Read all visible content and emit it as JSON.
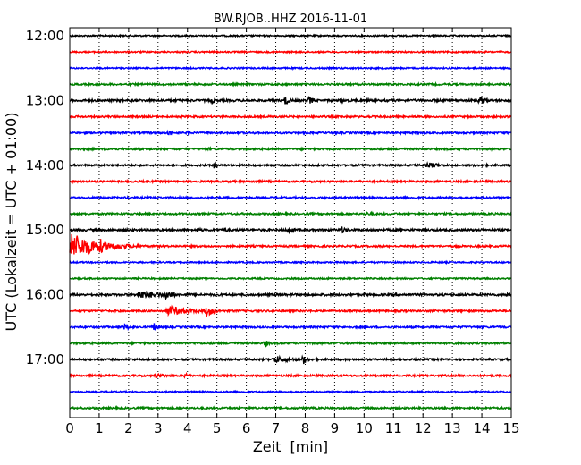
{
  "chart_data": {
    "type": "line",
    "title": "BW.RJOB..HHZ 2016-11-01",
    "xlabel": "Zeit  [min]",
    "ylabel": "UTC (Lokalzeit = UTC + 01:00)",
    "xlim": [
      0,
      15
    ],
    "x_ticks": [
      "0",
      "1",
      "2",
      "3",
      "4",
      "5",
      "6",
      "7",
      "8",
      "9",
      "10",
      "11",
      "12",
      "13",
      "14",
      "15"
    ],
    "y_ticks": [
      "12:00",
      "13:00",
      "14:00",
      "15:00",
      "16:00",
      "17:00"
    ],
    "grid": "vertical dotted",
    "colors": [
      "#000000",
      "#ff0000",
      "#0000ff",
      "#008000"
    ],
    "traces": [
      {
        "time": "12:00",
        "color": "#000000",
        "noise": 0.8,
        "events": []
      },
      {
        "time": "12:15",
        "color": "#ff0000",
        "noise": 0.8,
        "events": []
      },
      {
        "time": "12:30",
        "color": "#0000ff",
        "noise": 0.8,
        "events": []
      },
      {
        "time": "12:45",
        "color": "#008000",
        "noise": 1.0,
        "events": []
      },
      {
        "time": "13:00",
        "color": "#000000",
        "noise": 1.2,
        "events": [
          {
            "start": 4.8,
            "amp": 5,
            "dur": 0.3
          },
          {
            "start": 7.3,
            "amp": 7,
            "dur": 0.5
          },
          {
            "start": 8.1,
            "amp": 6,
            "dur": 0.6
          },
          {
            "start": 9.2,
            "amp": 5,
            "dur": 0.2
          },
          {
            "start": 13.9,
            "amp": 7,
            "dur": 0.6
          }
        ]
      },
      {
        "time": "13:15",
        "color": "#ff0000",
        "noise": 1.0,
        "events": []
      },
      {
        "time": "13:30",
        "color": "#0000ff",
        "noise": 1.0,
        "events": [
          {
            "start": 3.3,
            "amp": 4,
            "dur": 0.8
          },
          {
            "start": 4.0,
            "amp": 5,
            "dur": 0.3
          }
        ]
      },
      {
        "time": "13:45",
        "color": "#008000",
        "noise": 1.0,
        "events": [
          {
            "start": 4.7,
            "amp": 3,
            "dur": 0.3
          }
        ]
      },
      {
        "time": "14:00",
        "color": "#000000",
        "noise": 1.0,
        "events": [
          {
            "start": 4.9,
            "amp": 7,
            "dur": 0.3
          },
          {
            "start": 12.1,
            "amp": 4,
            "dur": 1.5
          }
        ]
      },
      {
        "time": "14:15",
        "color": "#ff0000",
        "noise": 1.0,
        "events": [
          {
            "start": 6.2,
            "amp": 3,
            "dur": 0.4
          }
        ]
      },
      {
        "time": "14:30",
        "color": "#0000ff",
        "noise": 1.0,
        "events": [
          {
            "start": 1.2,
            "amp": 2,
            "dur": 0.4
          }
        ]
      },
      {
        "time": "14:45",
        "color": "#008000",
        "noise": 1.0,
        "events": [
          {
            "start": 10.0,
            "amp": 2,
            "dur": 2.5
          }
        ]
      },
      {
        "time": "15:00",
        "color": "#000000",
        "noise": 1.2,
        "events": [
          {
            "start": 4.3,
            "amp": 3,
            "dur": 0.8
          },
          {
            "start": 5.2,
            "amp": 4,
            "dur": 0.6
          },
          {
            "start": 7.4,
            "amp": 5,
            "dur": 0.7
          },
          {
            "start": 8.3,
            "amp": 3,
            "dur": 0.4
          },
          {
            "start": 9.2,
            "amp": 5,
            "dur": 0.6
          }
        ]
      },
      {
        "time": "15:15",
        "color": "#ff0000",
        "noise": 1.0,
        "events": [
          {
            "start": 0.0,
            "amp": 16,
            "dur": 3.0
          },
          {
            "start": 1.0,
            "amp": 12,
            "dur": 0.5
          }
        ]
      },
      {
        "time": "15:30",
        "color": "#0000ff",
        "noise": 0.8,
        "events": []
      },
      {
        "time": "15:45",
        "color": "#008000",
        "noise": 0.8,
        "events": []
      },
      {
        "time": "16:00",
        "color": "#000000",
        "noise": 1.2,
        "events": [
          {
            "start": 2.3,
            "amp": 6,
            "dur": 2.5
          },
          {
            "start": 3.2,
            "amp": 8,
            "dur": 0.8
          },
          {
            "start": 10.0,
            "amp": 3,
            "dur": 0.3
          },
          {
            "start": 14.8,
            "amp": 4,
            "dur": 0.3
          }
        ]
      },
      {
        "time": "16:15",
        "color": "#ff0000",
        "noise": 1.0,
        "events": [
          {
            "start": 3.3,
            "amp": 6,
            "dur": 2.5
          },
          {
            "start": 4.6,
            "amp": 8,
            "dur": 0.8
          }
        ]
      },
      {
        "time": "16:30",
        "color": "#0000ff",
        "noise": 1.0,
        "events": [
          {
            "start": 1.8,
            "amp": 4,
            "dur": 1.0
          },
          {
            "start": 2.8,
            "amp": 7,
            "dur": 0.5
          },
          {
            "start": 6.1,
            "amp": 2,
            "dur": 0.3
          },
          {
            "start": 8.5,
            "amp": 2,
            "dur": 0.3
          }
        ]
      },
      {
        "time": "16:45",
        "color": "#008000",
        "noise": 1.0,
        "events": [
          {
            "start": 6.6,
            "amp": 6,
            "dur": 0.4
          }
        ]
      },
      {
        "time": "17:00",
        "color": "#000000",
        "noise": 1.0,
        "events": [
          {
            "start": 6.9,
            "amp": 5,
            "dur": 1.8
          },
          {
            "start": 7.9,
            "amp": 7,
            "dur": 0.5
          }
        ]
      },
      {
        "time": "17:15",
        "color": "#ff0000",
        "noise": 1.0,
        "events": [
          {
            "start": 2.9,
            "amp": 3,
            "dur": 1.5
          },
          {
            "start": 3.9,
            "amp": 5,
            "dur": 0.4
          }
        ]
      },
      {
        "time": "17:30",
        "color": "#0000ff",
        "noise": 0.8,
        "events": []
      },
      {
        "time": "17:45",
        "color": "#008000",
        "noise": 1.0,
        "events": []
      }
    ]
  }
}
